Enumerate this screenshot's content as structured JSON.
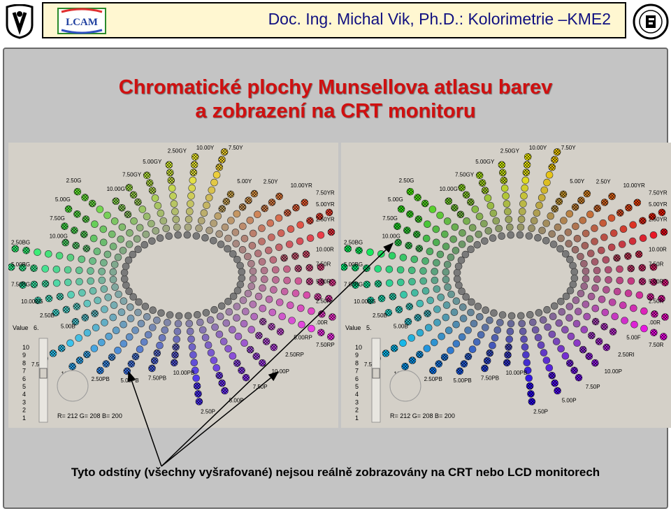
{
  "header": {
    "title": "Doc. Ing. Michal Vik, Ph.D.: Kolorimetrie –KME2",
    "left_logo": "university-logo",
    "lcam_logo_text": "LCAM",
    "right_logo": "faculty-seal"
  },
  "slide": {
    "title_line1": "Chromatické plochy Munsellova atlasu barev",
    "title_line2": "a zobrazení na CRT monitoru",
    "caption": "Tyto odstíny (všechny vyšrafované) nejsou reálně zobrazovány na CRT nebo LCD monitorech"
  },
  "panels": [
    {
      "hue_labels": [
        "10.00GY",
        "7.50GY",
        "5.00GY",
        "2.50GY",
        "10.00Y",
        "7.50Y",
        "5.00Y",
        "2.50Y",
        "10.00YR",
        "7.50YR",
        "5.00YR",
        "2.50YR",
        "10.00R",
        "7.50R",
        "5.00R",
        "2.50R",
        ".00R",
        "7.50RP",
        "5.00RP",
        "2.50RP",
        "10.00P",
        "7.50P",
        "5.00P",
        "2.50P",
        "10.00PB",
        "7.50PB",
        "5.00PB",
        "2.50PB",
        "10.00B",
        "7.50B",
        "5.00B",
        "2.50B",
        "10.00BG",
        "7.50BG",
        "5.00BG",
        "2.50BG",
        "10.00G",
        "7.50G",
        "5.00G",
        "2.50G"
      ],
      "value_label": "Value",
      "value": "6.",
      "value_scale": [
        "10",
        "9",
        "8",
        "7",
        "6",
        "5",
        "4",
        "3",
        "2",
        "1"
      ],
      "rgb_readout": "R= 212  G= 208  B= 200"
    },
    {
      "hue_labels": [
        "10.00GY",
        "7.50GY",
        "5.00GY",
        "2.50GY",
        "10.00Y",
        "7.50Y",
        "5.00Y",
        "2.50Y",
        "10.00YR",
        "7.50YR",
        "5.00YR",
        "2.50YR",
        "10.00R",
        "7.50R",
        "5.00R",
        "2.50R",
        ".00R",
        "7.50R",
        "5.00F",
        "2.50RI",
        "10.00P",
        "7.50P",
        "5.00P",
        "2.50P",
        "10.00PB",
        "7.50PB",
        "5.00PB",
        "2.50PB",
        "10.00B",
        "7.50B",
        "5.00B",
        "2.50B",
        "10.00BG",
        "7.50BG",
        "5.00BG",
        "2.50BG",
        "10.00G",
        "7.50G",
        "5.00G",
        "2.50G"
      ],
      "value_label": "Value",
      "value": "5.",
      "value_scale": [
        "10",
        "9",
        "8",
        "7",
        "6",
        "5",
        "4",
        "3",
        "2",
        "1"
      ],
      "rgb_readout": "R= 212  G= 208  B= 200"
    }
  ]
}
